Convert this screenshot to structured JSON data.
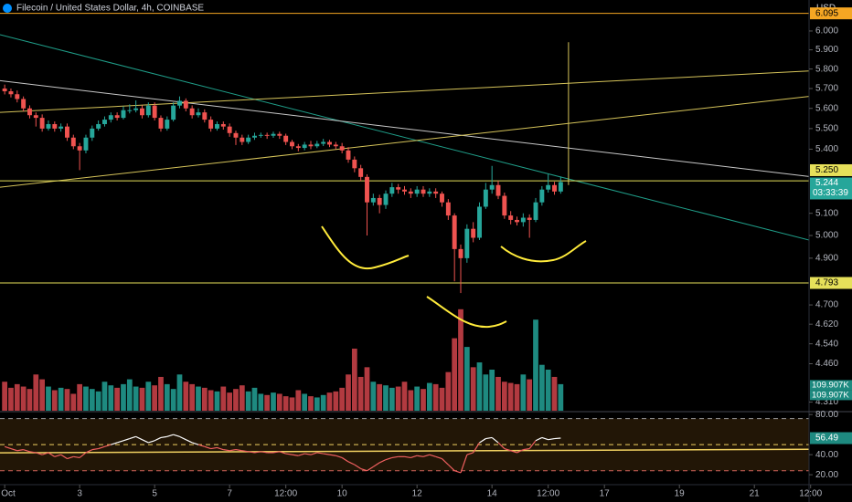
{
  "chart_data": {
    "type": "candlestick",
    "title": "Filecoin / United States Dollar, 4h, COINBASE",
    "currency": "USD",
    "x": [
      0,
      4,
      8,
      12,
      16,
      20,
      24,
      28,
      32,
      36,
      40,
      44,
      48,
      52,
      56,
      60,
      64,
      68,
      72,
      76,
      80,
      84,
      88,
      92,
      96,
      100,
      104,
      108,
      112,
      116,
      120,
      124,
      128,
      132,
      136,
      140,
      144,
      148,
      152,
      156,
      160,
      164,
      168,
      172,
      176,
      180,
      184,
      188,
      192,
      196,
      200,
      204,
      208,
      212,
      216,
      220,
      224,
      228,
      232,
      236,
      240,
      244,
      248,
      252,
      256,
      260,
      264,
      268,
      272,
      276,
      280,
      284,
      288,
      292,
      296,
      300,
      304,
      308,
      312,
      316,
      320,
      324,
      328,
      332,
      336,
      340,
      344,
      348,
      352,
      356
    ],
    "open": [
      5.7,
      5.686,
      5.671,
      5.647,
      5.6,
      5.566,
      5.553,
      5.5,
      5.522,
      5.5,
      5.51,
      5.456,
      5.414,
      5.394,
      5.456,
      5.5,
      5.522,
      5.544,
      5.566,
      5.553,
      5.591,
      5.591,
      5.6,
      5.566,
      5.614,
      5.553,
      5.5,
      5.544,
      5.614,
      5.638,
      5.6,
      5.566,
      5.58,
      5.544,
      5.5,
      5.522,
      5.51,
      5.478,
      5.456,
      5.435,
      5.456,
      5.465,
      5.469,
      5.465,
      5.474,
      5.465,
      5.435,
      5.414,
      5.406,
      5.422,
      5.414,
      5.426,
      5.435,
      5.422,
      5.414,
      5.394,
      5.35,
      5.309,
      5.268,
      5.15,
      5.17,
      5.138,
      5.19,
      5.22,
      5.209,
      5.2,
      5.19,
      5.209,
      5.19,
      5.2,
      5.19,
      5.15,
      5.09,
      4.94,
      4.9,
      5.03,
      4.99,
      5.13,
      5.209,
      5.23,
      5.18,
      5.09,
      5.07,
      5.06,
      5.08,
      5.07,
      5.15,
      5.209,
      5.23,
      5.2
    ],
    "high": [
      5.72,
      5.7,
      5.69,
      5.66,
      5.615,
      5.58,
      5.57,
      5.54,
      5.535,
      5.525,
      5.525,
      5.47,
      5.43,
      5.47,
      5.515,
      5.54,
      5.56,
      5.58,
      5.58,
      5.61,
      5.62,
      5.64,
      5.615,
      5.63,
      5.63,
      5.565,
      5.56,
      5.63,
      5.66,
      5.65,
      5.615,
      5.6,
      5.595,
      5.56,
      5.535,
      5.535,
      5.525,
      5.49,
      5.47,
      5.47,
      5.48,
      5.48,
      5.48,
      5.485,
      5.485,
      5.475,
      5.445,
      5.425,
      5.435,
      5.44,
      5.44,
      5.45,
      5.445,
      5.435,
      5.43,
      5.41,
      5.365,
      5.325,
      5.28,
      5.19,
      5.185,
      5.205,
      5.24,
      5.235,
      5.225,
      5.215,
      5.225,
      5.225,
      5.215,
      5.215,
      5.2,
      5.165,
      5.1,
      4.96,
      5.05,
      5.06,
      5.15,
      5.24,
      5.32,
      5.25,
      5.195,
      5.11,
      5.085,
      5.1,
      5.095,
      5.17,
      5.225,
      5.28,
      5.245,
      5.27
    ],
    "low": [
      5.67,
      5.655,
      5.63,
      5.585,
      5.55,
      5.51,
      5.485,
      5.49,
      5.485,
      5.485,
      5.44,
      5.4,
      5.3,
      5.38,
      5.44,
      5.49,
      5.51,
      5.53,
      5.54,
      5.545,
      5.575,
      5.58,
      5.55,
      5.555,
      5.54,
      5.485,
      5.49,
      5.535,
      5.6,
      5.585,
      5.55,
      5.555,
      5.53,
      5.485,
      5.49,
      5.495,
      5.46,
      5.42,
      5.42,
      5.425,
      5.445,
      5.455,
      5.45,
      5.455,
      5.45,
      5.42,
      5.4,
      5.39,
      5.395,
      5.4,
      5.405,
      5.415,
      5.41,
      5.4,
      5.38,
      5.335,
      5.29,
      5.25,
      5.0,
      5.135,
      5.1,
      5.12,
      5.175,
      5.19,
      5.185,
      5.17,
      5.175,
      5.175,
      5.175,
      5.17,
      5.13,
      5.07,
      4.8,
      4.75,
      4.88,
      4.97,
      4.98,
      5.12,
      5.19,
      5.165,
      5.075,
      5.05,
      5.045,
      5.04,
      4.99,
      5.06,
      5.135,
      5.195,
      5.185,
      5.19
    ],
    "close": [
      5.686,
      5.671,
      5.647,
      5.6,
      5.566,
      5.553,
      5.5,
      5.522,
      5.5,
      5.51,
      5.456,
      5.414,
      5.394,
      5.456,
      5.5,
      5.522,
      5.544,
      5.566,
      5.553,
      5.591,
      5.591,
      5.6,
      5.566,
      5.614,
      5.553,
      5.5,
      5.544,
      5.614,
      5.638,
      5.6,
      5.566,
      5.58,
      5.544,
      5.5,
      5.522,
      5.51,
      5.478,
      5.456,
      5.435,
      5.456,
      5.465,
      5.469,
      5.465,
      5.474,
      5.465,
      5.435,
      5.414,
      5.406,
      5.422,
      5.414,
      5.426,
      5.435,
      5.422,
      5.414,
      5.394,
      5.35,
      5.309,
      5.268,
      5.15,
      5.17,
      5.138,
      5.19,
      5.22,
      5.209,
      5.2,
      5.19,
      5.209,
      5.19,
      5.2,
      5.19,
      5.15,
      5.09,
      4.94,
      4.9,
      5.03,
      4.99,
      5.13,
      5.209,
      5.23,
      5.18,
      5.09,
      5.07,
      5.06,
      5.08,
      5.07,
      5.15,
      5.209,
      5.23,
      5.2,
      5.244
    ],
    "up_color": "#26a69a",
    "down_color": "#ef5350",
    "log_scale": true,
    "xlim": [
      -3,
      515
    ],
    "xticks": [
      {
        "value": 0,
        "label": "Oct"
      },
      {
        "value": 48,
        "label": "3"
      },
      {
        "value": 96,
        "label": "5"
      },
      {
        "value": 144,
        "label": "7"
      },
      {
        "value": 180,
        "label": "12:00"
      },
      {
        "value": 216,
        "label": "10"
      },
      {
        "value": 264,
        "label": "12"
      },
      {
        "value": 312,
        "label": "14"
      },
      {
        "value": 348,
        "label": "12:00"
      },
      {
        "value": 384,
        "label": "17"
      },
      {
        "value": 432,
        "label": "19"
      },
      {
        "value": 480,
        "label": "21"
      },
      {
        "value": 516,
        "label": "12:00"
      }
    ],
    "ylim": [
      4.277,
      6.168
    ],
    "yticks": [
      {
        "value": 6,
        "label": "6.000"
      },
      {
        "value": 5.9,
        "label": "5.900"
      },
      {
        "value": 5.8,
        "label": "5.800"
      },
      {
        "value": 5.7,
        "label": "5.700"
      },
      {
        "value": 5.6,
        "label": "5.600"
      },
      {
        "value": 5.5,
        "label": "5.500"
      },
      {
        "value": 5.4,
        "label": "5.400"
      },
      {
        "value": 5.1,
        "label": "5.100"
      },
      {
        "value": 5,
        "label": "5.000"
      },
      {
        "value": 4.9,
        "label": "4.900"
      },
      {
        "value": 4.7,
        "label": "4.700"
      },
      {
        "value": 4.62,
        "label": "4.620"
      },
      {
        "value": 4.54,
        "label": "4.540"
      },
      {
        "value": 4.46,
        "label": "4.460"
      },
      {
        "value": 4.31,
        "label": "4.310"
      }
    ],
    "levels": [
      {
        "value": 6.095,
        "label": "6.095",
        "color": "#f5a623"
      },
      {
        "value": 5.25,
        "label": "5.250",
        "color": "#e6e05a"
      },
      {
        "value": 4.793,
        "label": "4.793",
        "color": "#e6e05a"
      }
    ],
    "countdown": "03:33:39",
    "drawings": [
      {
        "color": "#1f9e89",
        "x": [
          -3,
          515
        ],
        "y": [
          5.98,
          4.98
        ]
      },
      {
        "color": "#c8c8c8",
        "x": [
          -3,
          515
        ],
        "y": [
          5.74,
          5.27
        ]
      },
      {
        "color": "#d6c45a",
        "x": [
          -3,
          515
        ],
        "y": [
          5.58,
          5.79
        ]
      },
      {
        "color": "#d6c45a",
        "x": [
          -3,
          515
        ],
        "y": [
          5.22,
          5.66
        ]
      },
      {
        "color": "#d6c45a",
        "x": [
          361,
          361
        ],
        "y": [
          5.94,
          5.23
        ]
      }
    ],
    "volume": {
      "values": [
        120,
        95,
        110,
        100,
        90,
        150,
        130,
        100,
        85,
        95,
        90,
        70,
        110,
        100,
        90,
        80,
        120,
        105,
        95,
        110,
        130,
        100,
        95,
        120,
        105,
        140,
        110,
        90,
        150,
        120,
        110,
        100,
        95,
        85,
        80,
        100,
        75,
        90,
        105,
        80,
        95,
        70,
        65,
        75,
        70,
        60,
        55,
        85,
        70,
        60,
        55,
        65,
        75,
        80,
        95,
        150,
        257,
        140,
        180,
        120,
        110,
        105,
        95,
        100,
        120,
        85,
        100,
        90,
        115,
        110,
        95,
        160,
        300,
        420,
        264,
        180,
        200,
        150,
        170,
        140,
        120,
        115,
        110,
        150,
        130,
        377,
        190,
        170,
        140,
        109.907
      ],
      "labels": [
        "109.907K",
        "109.907K"
      ],
      "vlim": [
        0,
        1700
      ],
      "up_color": "#1e8a80",
      "down_color": "#b23a40"
    },
    "rsi": {
      "values": [
        48,
        46,
        44,
        45,
        43,
        42,
        40,
        42,
        38,
        40,
        36,
        38,
        37,
        42,
        45,
        46,
        48,
        50,
        52,
        54,
        56,
        58,
        55,
        52,
        54,
        57,
        58,
        60,
        58,
        55,
        52,
        50,
        48,
        46,
        47,
        45,
        44,
        45,
        44,
        43,
        42,
        43,
        42,
        42,
        43,
        41,
        40,
        39,
        41,
        40,
        42,
        41,
        40,
        39,
        37,
        33,
        30,
        26,
        24,
        28,
        32,
        35,
        37,
        38,
        38,
        37,
        39,
        38,
        40,
        38,
        36,
        30,
        24,
        22,
        40,
        42,
        52,
        56,
        57,
        52,
        46,
        44,
        42,
        45,
        46,
        54,
        57,
        55,
        56,
        56.49
      ],
      "ylim": [
        11,
        82
      ],
      "yticks": [
        {
          "value": 80,
          "label": "80.00"
        },
        {
          "value": 40,
          "label": "40.00"
        },
        {
          "value": 20,
          "label": "20.00"
        }
      ],
      "bands": [
        76,
        50,
        24
      ],
      "band_colors": [
        "#9a9a9a",
        "#f0d060",
        "#d0605a"
      ],
      "up_color": "#ffffff",
      "down_color": "#f06060",
      "ma": {
        "color": "#f0d060",
        "x": [
          -3,
          515
        ],
        "values": [
          41.8,
          45.4
        ]
      }
    }
  }
}
